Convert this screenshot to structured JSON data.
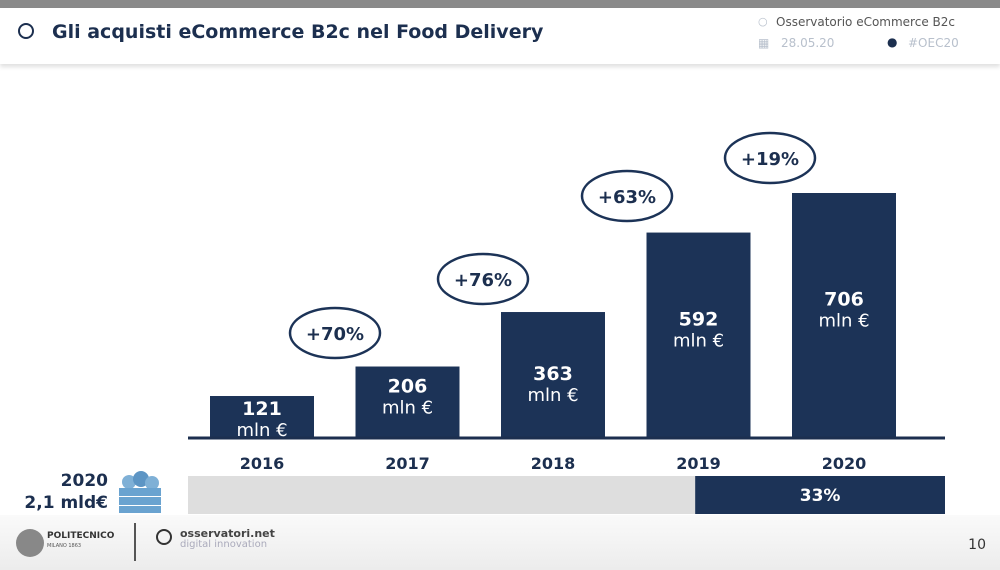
{
  "header": {
    "title": "Gli acquisti eCommerce B2c nel Food Delivery",
    "observatory": "Osservatorio eCommerce B2c",
    "date": "28.05.20",
    "hashtag": "#OEC20"
  },
  "summary": {
    "year": "2020",
    "total": "2,1 mld€",
    "share": "33%",
    "share_value": 33
  },
  "footer": {
    "poli_name": "POLITECNICO",
    "poli_sub": "MILANO 1863",
    "osservatori": "osservatori.net",
    "osservatori_sub": "digital innovation",
    "page_number": "10"
  },
  "colors": {
    "bar": "#1c3357",
    "ellipse_stroke": "#1c3357",
    "share_bg": "#dedede"
  },
  "chart_data": {
    "type": "bar",
    "title": "Gli acquisti eCommerce B2c nel Food Delivery",
    "categories": [
      "2016",
      "2017",
      "2018",
      "2019",
      "2020"
    ],
    "values": [
      121,
      206,
      363,
      592,
      706
    ],
    "unit": "mln €",
    "growth_labels": [
      "+70%",
      "+76%",
      "+63%",
      "+19%"
    ],
    "ylim": [
      0,
      706
    ],
    "xlabel": "",
    "ylabel": ""
  }
}
